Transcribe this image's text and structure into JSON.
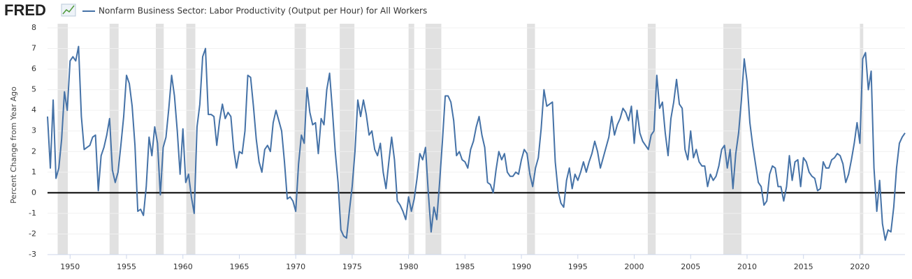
{
  "chart_data": {
    "type": "line",
    "logo": "FRED",
    "ylabel": "Percent Change from Year Ago",
    "xlim": [
      1948.0,
      2024.0
    ],
    "ylim": [
      -3,
      8
    ],
    "yticks": [
      -3,
      -2,
      -1,
      0,
      1,
      2,
      3,
      4,
      5,
      6,
      7,
      8
    ],
    "xticks": [
      1950,
      1955,
      1960,
      1965,
      1970,
      1975,
      1980,
      1985,
      1990,
      1995,
      2000,
      2005,
      2010,
      2015,
      2020
    ],
    "grid": true,
    "reference_line": 0,
    "recession_color": "#e1e1e1",
    "recessions": [
      [
        1948.9,
        1949.8
      ],
      [
        1953.5,
        1954.3
      ],
      [
        1957.6,
        1958.3
      ],
      [
        1960.3,
        1961.1
      ],
      [
        1969.9,
        1970.9
      ],
      [
        1973.9,
        1975.2
      ],
      [
        1980.0,
        1980.5
      ],
      [
        1981.5,
        1982.9
      ],
      [
        1990.5,
        1991.2
      ],
      [
        2001.2,
        2001.9
      ],
      [
        2007.9,
        2009.5
      ],
      [
        2020.0,
        2020.3
      ]
    ],
    "x": [
      1948,
      1948.25,
      1948.5,
      1948.75,
      1949,
      1949.25,
      1949.5,
      1949.75,
      1950,
      1950.25,
      1950.5,
      1950.75,
      1951,
      1951.25,
      1951.5,
      1951.75,
      1952,
      1952.25,
      1952.5,
      1952.75,
      1953,
      1953.25,
      1953.5,
      1953.75,
      1954,
      1954.25,
      1954.5,
      1954.75,
      1955,
      1955.25,
      1955.5,
      1955.75,
      1956,
      1956.25,
      1956.5,
      1956.75,
      1957,
      1957.25,
      1957.5,
      1957.75,
      1958,
      1958.25,
      1958.5,
      1958.75,
      1959,
      1959.25,
      1959.5,
      1959.75,
      1960,
      1960.25,
      1960.5,
      1960.75,
      1961,
      1961.25,
      1961.5,
      1961.75,
      1962,
      1962.25,
      1962.5,
      1962.75,
      1963,
      1963.25,
      1963.5,
      1963.75,
      1964,
      1964.25,
      1964.5,
      1964.75,
      1965,
      1965.25,
      1965.5,
      1965.75,
      1966,
      1966.25,
      1966.5,
      1966.75,
      1967,
      1967.25,
      1967.5,
      1967.75,
      1968,
      1968.25,
      1968.5,
      1968.75,
      1969,
      1969.25,
      1969.5,
      1969.75,
      1970,
      1970.25,
      1970.5,
      1970.75,
      1971,
      1971.25,
      1971.5,
      1971.75,
      1972,
      1972.25,
      1972.5,
      1972.75,
      1973,
      1973.25,
      1973.5,
      1973.75,
      1974,
      1974.25,
      1974.5,
      1974.75,
      1975,
      1975.25,
      1975.5,
      1975.75,
      1976,
      1976.25,
      1976.5,
      1976.75,
      1977,
      1977.25,
      1977.5,
      1977.75,
      1978,
      1978.25,
      1978.5,
      1978.75,
      1979,
      1979.25,
      1979.5,
      1979.75,
      1980,
      1980.25,
      1980.5,
      1980.75,
      1981,
      1981.25,
      1981.5,
      1981.75,
      1982,
      1982.25,
      1982.5,
      1982.75,
      1983,
      1983.25,
      1983.5,
      1983.75,
      1984,
      1984.25,
      1984.5,
      1984.75,
      1985,
      1985.25,
      1985.5,
      1985.75,
      1986,
      1986.25,
      1986.5,
      1986.75,
      1987,
      1987.25,
      1987.5,
      1987.75,
      1988,
      1988.25,
      1988.5,
      1988.75,
      1989,
      1989.25,
      1989.5,
      1989.75,
      1990,
      1990.25,
      1990.5,
      1990.75,
      1991,
      1991.25,
      1991.5,
      1991.75,
      1992,
      1992.25,
      1992.5,
      1992.75,
      1993,
      1993.25,
      1993.5,
      1993.75,
      1994,
      1994.25,
      1994.5,
      1994.75,
      1995,
      1995.25,
      1995.5,
      1995.75,
      1996,
      1996.25,
      1996.5,
      1996.75,
      1997,
      1997.25,
      1997.5,
      1997.75,
      1998,
      1998.25,
      1998.5,
      1998.75,
      1999,
      1999.25,
      1999.5,
      1999.75,
      2000,
      2000.25,
      2000.5,
      2000.75,
      2001,
      2001.25,
      2001.5,
      2001.75,
      2002,
      2002.25,
      2002.5,
      2002.75,
      2003,
      2003.25,
      2003.5,
      2003.75,
      2004,
      2004.25,
      2004.5,
      2004.75,
      2005,
      2005.25,
      2005.5,
      2005.75,
      2006,
      2006.25,
      2006.5,
      2006.75,
      2007,
      2007.25,
      2007.5,
      2007.75,
      2008,
      2008.25,
      2008.5,
      2008.75,
      2009,
      2009.25,
      2009.5,
      2009.75,
      2010,
      2010.25,
      2010.5,
      2010.75,
      2011,
      2011.25,
      2011.5,
      2011.75,
      2012,
      2012.25,
      2012.5,
      2012.75,
      2013,
      2013.25,
      2013.5,
      2013.75,
      2014,
      2014.25,
      2014.5,
      2014.75,
      2015,
      2015.25,
      2015.5,
      2015.75,
      2016,
      2016.25,
      2016.5,
      2016.75,
      2017,
      2017.25,
      2017.5,
      2017.75,
      2018,
      2018.25,
      2018.5,
      2018.75,
      2019,
      2019.25,
      2019.5,
      2019.75,
      2020,
      2020.25,
      2020.5,
      2020.75,
      2021,
      2021.25,
      2021.5,
      2021.75,
      2022,
      2022.25,
      2022.5,
      2022.75,
      2023,
      2023.25,
      2023.5,
      2023.75,
      2024
    ],
    "series": [
      {
        "name": "Nonfarm Business Sector: Labor Productivity (Output per Hour) for All Workers",
        "color": "#4572a7",
        "values": [
          3.7,
          1.2,
          4.5,
          0.7,
          1.2,
          2.6,
          4.9,
          4.0,
          6.4,
          6.6,
          6.4,
          7.1,
          3.7,
          2.1,
          2.2,
          2.3,
          2.7,
          2.8,
          0.1,
          1.8,
          2.2,
          2.8,
          3.6,
          1.1,
          0.5,
          1.0,
          2.3,
          3.7,
          5.7,
          5.3,
          4.2,
          2.3,
          -0.9,
          -0.8,
          -1.1,
          0.3,
          2.7,
          1.8,
          3.2,
          2.4,
          -0.1,
          2.2,
          2.7,
          4.1,
          5.7,
          4.7,
          3.0,
          0.9,
          3.1,
          0.5,
          0.9,
          -0.2,
          -1.0,
          3.2,
          4.3,
          6.6,
          7.0,
          3.8,
          3.8,
          3.7,
          2.3,
          3.5,
          4.3,
          3.6,
          3.9,
          3.7,
          2.1,
          1.2,
          2.0,
          1.9,
          3.0,
          5.7,
          5.6,
          4.2,
          2.6,
          1.5,
          1.0,
          2.1,
          2.3,
          2.0,
          3.4,
          4.0,
          3.5,
          3.0,
          1.5,
          -0.3,
          -0.2,
          -0.4,
          -0.9,
          1.4,
          2.8,
          2.4,
          5.1,
          3.9,
          3.3,
          3.4,
          1.9,
          3.6,
          3.3,
          5.0,
          5.8,
          4.0,
          2.0,
          0.5,
          -1.8,
          -2.1,
          -2.2,
          -0.9,
          0.3,
          2.0,
          4.5,
          3.7,
          4.5,
          3.8,
          2.8,
          3.0,
          2.1,
          1.8,
          2.4,
          1.0,
          0.2,
          1.5,
          2.7,
          1.6,
          -0.4,
          -0.6,
          -0.9,
          -1.3,
          -0.2,
          -0.9,
          -0.3,
          0.7,
          1.9,
          1.6,
          2.2,
          0.0,
          -1.9,
          -0.7,
          -1.3,
          0.5,
          2.5,
          4.7,
          4.7,
          4.4,
          3.5,
          1.8,
          2.0,
          1.6,
          1.5,
          1.2,
          2.1,
          2.5,
          3.2,
          3.7,
          2.8,
          2.2,
          0.5,
          0.4,
          0.0,
          1.1,
          2.0,
          1.6,
          1.9,
          1.0,
          0.8,
          0.8,
          1.0,
          0.9,
          1.6,
          2.1,
          1.9,
          0.9,
          0.3,
          1.2,
          1.7,
          3.1,
          5.0,
          4.2,
          4.3,
          4.4,
          1.5,
          0.1,
          -0.5,
          -0.7,
          0.6,
          1.2,
          0.2,
          0.9,
          0.6,
          1.0,
          1.5,
          1.0,
          1.5,
          1.9,
          2.5,
          2.0,
          1.2,
          1.7,
          2.2,
          2.7,
          3.7,
          2.8,
          3.3,
          3.6,
          4.1,
          3.9,
          3.5,
          4.2,
          2.4,
          4.0,
          2.9,
          2.5,
          2.3,
          2.1,
          2.8,
          3.0,
          5.7,
          4.1,
          4.4,
          2.9,
          1.8,
          3.6,
          4.4,
          5.5,
          4.3,
          4.1,
          2.1,
          1.6,
          3.0,
          1.7,
          2.1,
          1.5,
          1.3,
          1.3,
          0.3,
          0.9,
          0.6,
          0.8,
          1.3,
          2.1,
          2.3,
          1.2,
          2.1,
          0.2,
          1.9,
          2.9,
          4.5,
          6.5,
          5.4,
          3.4,
          2.3,
          1.4,
          0.5,
          0.3,
          -0.6,
          -0.4,
          0.9,
          1.3,
          1.2,
          0.3,
          0.3,
          -0.4,
          0.3,
          1.8,
          0.6,
          1.5,
          1.6,
          0.3,
          1.7,
          1.5,
          1.0,
          0.8,
          0.7,
          0.1,
          0.2,
          1.5,
          1.2,
          1.2,
          1.6,
          1.7,
          1.9,
          1.8,
          1.4,
          0.5,
          0.9,
          1.6,
          2.4,
          3.4,
          2.4,
          6.5,
          6.8,
          5.0,
          5.9,
          1.2,
          -0.9,
          0.6,
          -1.5,
          -2.3,
          -1.8,
          -1.9,
          -0.7,
          1.2,
          2.4,
          2.7,
          2.9
        ]
      }
    ]
  }
}
